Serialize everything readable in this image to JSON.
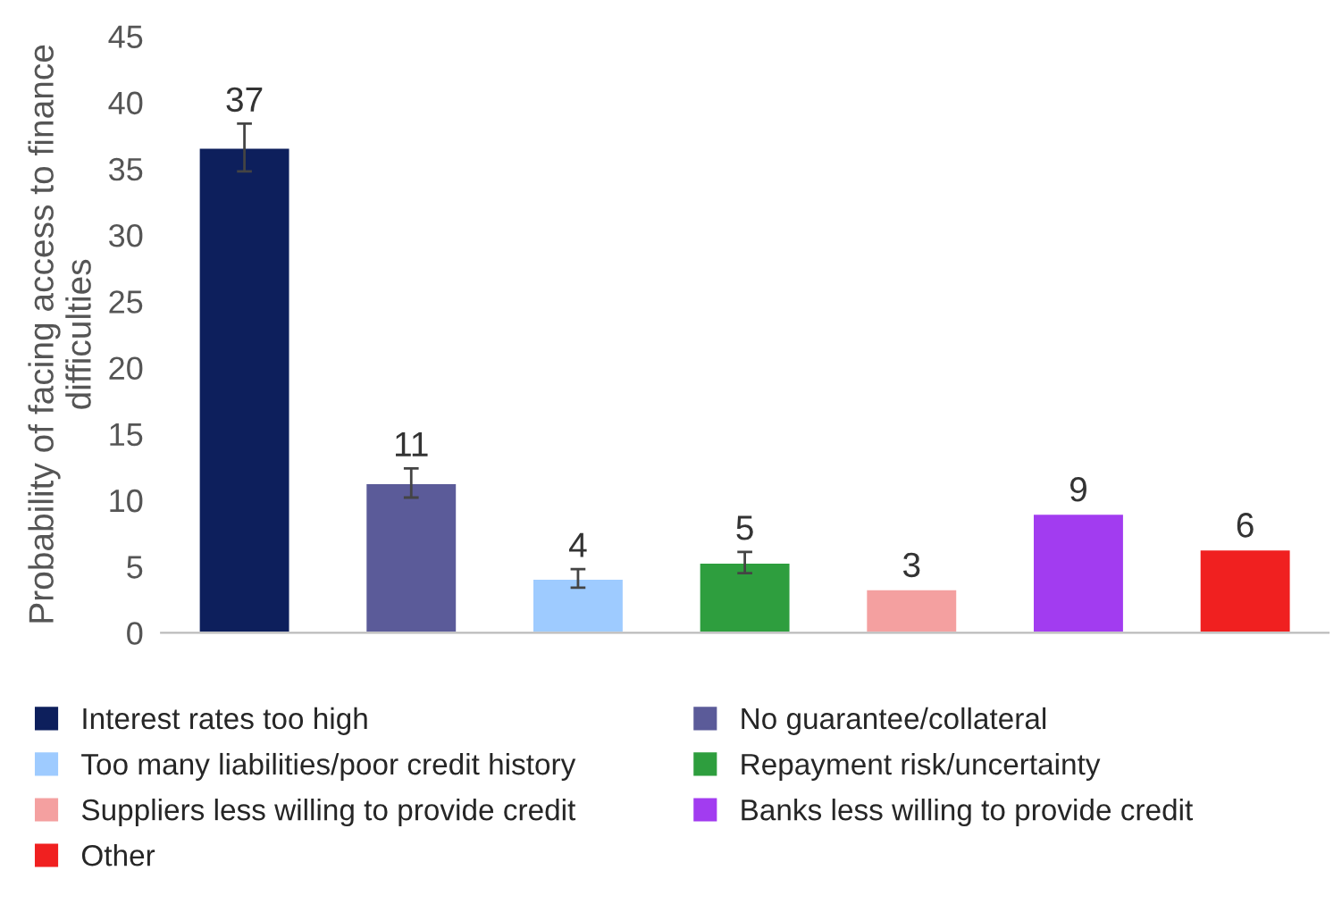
{
  "chart_data": {
    "type": "bar",
    "ylabel": "Probability of facing access to finance difficulties",
    "categories": [
      null,
      null,
      null,
      null,
      null,
      null,
      null
    ],
    "series": [
      {
        "name": "Interest rates too high",
        "color": "#0d1f5c",
        "values": [
          36.6,
          null,
          null,
          null,
          null,
          null,
          null
        ],
        "errors": [
          1.8,
          null,
          null,
          null,
          null,
          null,
          null
        ],
        "value_labels": [
          "37",
          null,
          null,
          null,
          null,
          null,
          null
        ]
      },
      {
        "name": "No guarantee/collateral",
        "color": "#5b5b99",
        "values": [
          null,
          11.3,
          null,
          null,
          null,
          null,
          null
        ],
        "errors": [
          null,
          1.1,
          null,
          null,
          null,
          null,
          null
        ],
        "value_labels": [
          null,
          "11",
          null,
          null,
          null,
          null,
          null
        ]
      },
      {
        "name": "Too many liabilities/poor credit history",
        "color": "#9ecbff",
        "values": [
          null,
          null,
          4.1,
          null,
          null,
          null,
          null
        ],
        "errors": [
          null,
          null,
          0.7,
          null,
          null,
          null,
          null
        ],
        "value_labels": [
          null,
          null,
          "4",
          null,
          null,
          null,
          null
        ]
      },
      {
        "name": "Repayment risk/uncertainty",
        "color": "#2e9e3e",
        "values": [
          null,
          null,
          null,
          5.3,
          null,
          null,
          null
        ],
        "errors": [
          null,
          null,
          null,
          0.8,
          null,
          null,
          null
        ],
        "value_labels": [
          null,
          null,
          null,
          "5",
          null,
          null,
          null
        ]
      },
      {
        "name": "Suppliers less willing to provide credit",
        "color": "#f4a0a0",
        "values": [
          null,
          null,
          null,
          null,
          3.3,
          null,
          null
        ],
        "value_labels": [
          null,
          null,
          null,
          null,
          "3",
          null,
          null
        ]
      },
      {
        "name": "Banks less willing to provide credit",
        "color": "#a23cf0",
        "values": [
          null,
          null,
          null,
          null,
          null,
          9.0,
          null
        ],
        "value_labels": [
          null,
          null,
          null,
          null,
          null,
          "9",
          null
        ]
      },
      {
        "name": "Other",
        "color": "#f02020",
        "values": [
          null,
          null,
          null,
          null,
          null,
          null,
          6.3
        ],
        "value_labels": [
          null,
          null,
          null,
          null,
          null,
          null,
          "6"
        ]
      }
    ],
    "ylim": [
      0,
      45
    ],
    "yticks": [
      0,
      5,
      10,
      15,
      20,
      25,
      30,
      35,
      40,
      45
    ],
    "grid": false,
    "legend": "bottom"
  }
}
